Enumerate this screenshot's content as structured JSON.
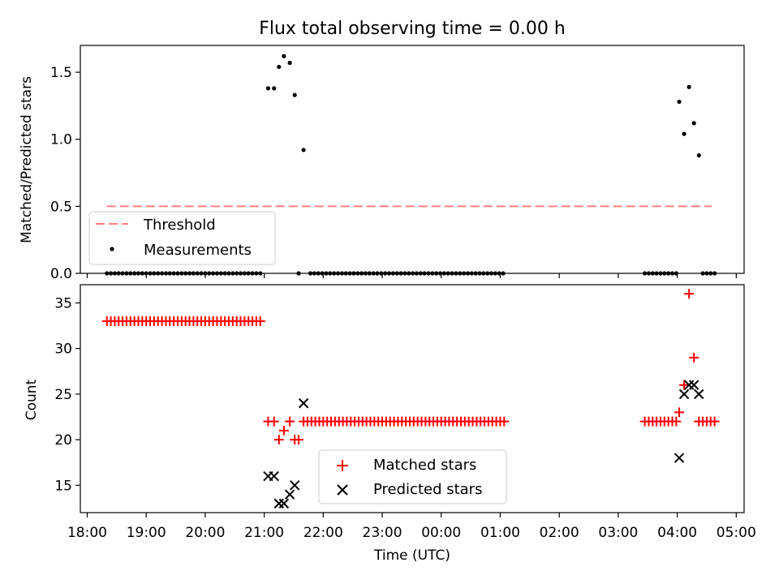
{
  "title": "Flux total observing time = 0.00 h",
  "xlabel": "Time (UTC)",
  "colors": {
    "threshold": "#ff7f7f",
    "measurement": "#000000",
    "matched": "#ff0000",
    "predicted": "#000000"
  },
  "chart_data": [
    {
      "type": "scatter",
      "ylabel": "Matched/Predicted stars",
      "ylim": [
        0,
        1.7
      ],
      "yticks": [
        0.0,
        0.5,
        1.0,
        1.5
      ],
      "legend": {
        "placement": "lower-left",
        "entries": [
          "Threshold",
          "Measurements"
        ]
      },
      "threshold": {
        "name": "Threshold",
        "y": 0.5,
        "x_start": "18:20",
        "x_end": "04:35"
      },
      "measurements_zero_runs": [
        {
          "start": "18:20",
          "end": "20:58",
          "step_min": 4
        },
        {
          "start": "21:47",
          "end": "01:05",
          "step_min": 4
        },
        {
          "start": "03:27",
          "end": "03:59",
          "step_min": 4
        },
        {
          "start": "04:26",
          "end": "04:39",
          "step_min": 4
        }
      ],
      "measurements": [
        {
          "t": "21:04",
          "y": 1.38
        },
        {
          "t": "21:10",
          "y": 1.38
        },
        {
          "t": "21:15",
          "y": 1.54
        },
        {
          "t": "21:20",
          "y": 1.62
        },
        {
          "t": "21:26",
          "y": 1.57
        },
        {
          "t": "21:31",
          "y": 1.33
        },
        {
          "t": "21:35",
          "y": 0.0
        },
        {
          "t": "21:40",
          "y": 0.92
        },
        {
          "t": "04:02",
          "y": 1.28
        },
        {
          "t": "04:07",
          "y": 1.04
        },
        {
          "t": "04:12",
          "y": 1.39
        },
        {
          "t": "04:17",
          "y": 1.12
        },
        {
          "t": "04:22",
          "y": 0.88
        }
      ]
    },
    {
      "type": "scatter",
      "ylabel": "Count",
      "ylim": [
        12,
        37
      ],
      "yticks": [
        15,
        20,
        25,
        30,
        35
      ],
      "legend": {
        "placement": "bottom-center",
        "entries": [
          "Matched stars",
          "Predicted stars"
        ]
      },
      "matched_runs": [
        {
          "start": "18:20",
          "end": "20:58",
          "step_min": 4,
          "y": 33
        },
        {
          "start": "21:40",
          "end": "01:05",
          "step_min": 4,
          "y": 22
        },
        {
          "start": "03:27",
          "end": "03:59",
          "step_min": 4,
          "y": 22
        },
        {
          "start": "04:22",
          "end": "04:39",
          "step_min": 4,
          "y": 22
        }
      ],
      "matched": [
        {
          "t": "21:04",
          "y": 22
        },
        {
          "t": "21:10",
          "y": 22
        },
        {
          "t": "21:15",
          "y": 20
        },
        {
          "t": "21:20",
          "y": 21
        },
        {
          "t": "21:26",
          "y": 22
        },
        {
          "t": "21:31",
          "y": 20
        },
        {
          "t": "21:35",
          "y": 20
        },
        {
          "t": "04:02",
          "y": 23
        },
        {
          "t": "04:07",
          "y": 26
        },
        {
          "t": "04:12",
          "y": 36
        },
        {
          "t": "04:17",
          "y": 29
        }
      ],
      "predicted": [
        {
          "t": "21:04",
          "y": 16
        },
        {
          "t": "21:10",
          "y": 16
        },
        {
          "t": "21:15",
          "y": 13
        },
        {
          "t": "21:20",
          "y": 13
        },
        {
          "t": "21:26",
          "y": 14
        },
        {
          "t": "21:31",
          "y": 15
        },
        {
          "t": "21:40",
          "y": 24
        },
        {
          "t": "04:02",
          "y": 18
        },
        {
          "t": "04:07",
          "y": 25
        },
        {
          "t": "04:12",
          "y": 26
        },
        {
          "t": "04:17",
          "y": 26
        },
        {
          "t": "04:22",
          "y": 25
        }
      ]
    }
  ],
  "xaxis": {
    "range": [
      "17:53",
      "05:08"
    ],
    "ticks": [
      "18:00",
      "19:00",
      "20:00",
      "21:00",
      "22:00",
      "23:00",
      "00:00",
      "01:00",
      "02:00",
      "03:00",
      "04:00",
      "05:00"
    ]
  }
}
